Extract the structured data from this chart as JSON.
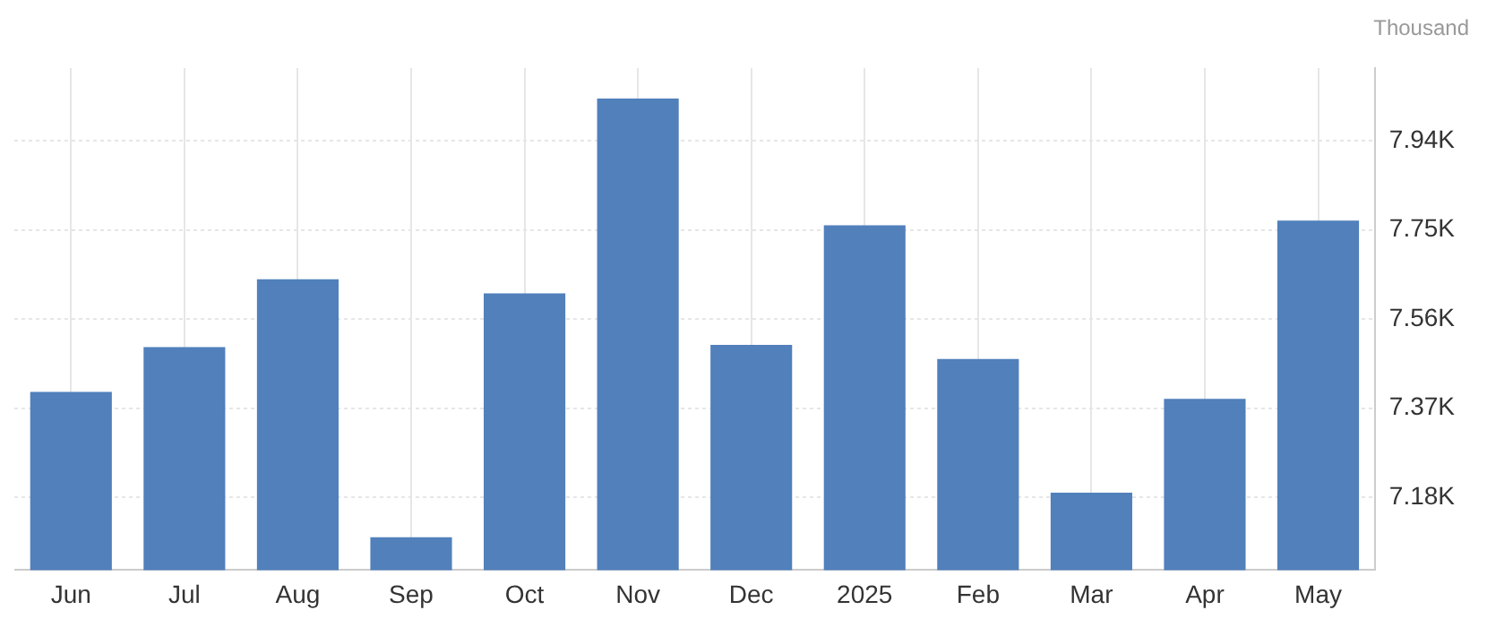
{
  "chart_data": {
    "type": "bar",
    "ylabel": "Thousand",
    "categories": [
      "Jun",
      "Jul",
      "Aug",
      "Sep",
      "Oct",
      "Nov",
      "Dec",
      "2025",
      "Feb",
      "Mar",
      "Apr",
      "May"
    ],
    "values": [
      7.405,
      7.5,
      7.645,
      7.095,
      7.615,
      8.03,
      7.505,
      7.76,
      7.475,
      7.19,
      7.39,
      7.77
    ],
    "color": "#5180bb",
    "ylim": [
      7.025,
      8.095
    ],
    "yticks": [
      {
        "value": 7.18,
        "label": "7.18K"
      },
      {
        "value": 7.37,
        "label": "7.37K"
      },
      {
        "value": 7.56,
        "label": "7.56K"
      },
      {
        "value": 7.75,
        "label": "7.75K"
      },
      {
        "value": 7.94,
        "label": "7.94K"
      }
    ],
    "grid": true
  }
}
